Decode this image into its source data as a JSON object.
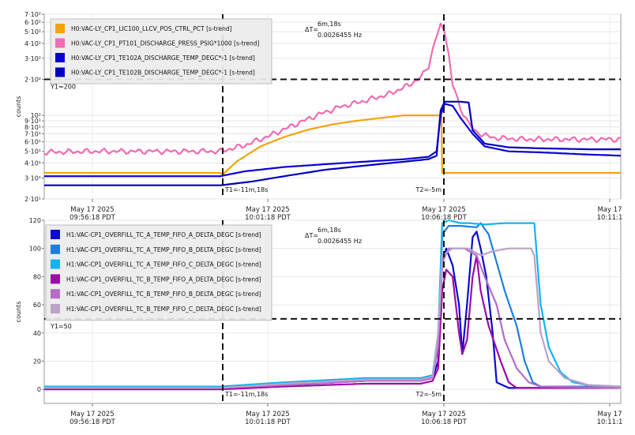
{
  "chart_data": [
    {
      "type": "line",
      "ylabel": "counts",
      "yscale": "log",
      "ylim": [
        20,
        700
      ],
      "y_ticks": [
        {
          "value": 20,
          "label": "2·10¹"
        },
        {
          "value": 30,
          "label": "3·10¹"
        },
        {
          "value": 40,
          "label": "4·10¹"
        },
        {
          "value": 50,
          "label": "5·10¹"
        },
        {
          "value": 60,
          "label": "6·10¹"
        },
        {
          "value": 70,
          "label": "7·10¹"
        },
        {
          "value": 80,
          "label": "8·10¹"
        },
        {
          "value": 90,
          "label": "9·10¹"
        },
        {
          "value": 100,
          "label": "10²"
        },
        {
          "value": 200,
          "label": "2·10²"
        },
        {
          "value": 300,
          "label": "3·10²"
        },
        {
          "value": 400,
          "label": "4·10²"
        },
        {
          "value": 500,
          "label": "5·10²"
        },
        {
          "value": 600,
          "label": "6·10²"
        },
        {
          "value": 700,
          "label": "7·10²"
        }
      ],
      "grid": true,
      "legend_position": "top-left",
      "x_ticks": [
        {
          "date": "May 17 2025",
          "time": "09:56:18 PDT"
        },
        {
          "date": "May 17 2025",
          "time": "10:01:18 PDT"
        },
        {
          "date": "May 17 2025",
          "time": "10:06:18 PDT"
        },
        {
          "date": "May 17",
          "time": "10:11:1"
        }
      ],
      "cursor_lines": {
        "t1_label": "T1=-11m,18s",
        "t2_label": "T2=-5m",
        "y1_label": "Y1=200",
        "y1_value": 200
      },
      "delta_annotation": {
        "label": "ΔT=",
        "line1": "6m,18s",
        "line2": "0.0026455 Hz"
      },
      "series": [
        {
          "name": "H0:VAC-LY_CP1_LIC100_LLCV_POS_CTRL_PCT [s-trend]",
          "color": "#f5a30a",
          "points": [
            [
              0,
              33
            ],
            [
              220,
              33
            ],
            [
              223,
              32
            ],
            [
              240,
              41
            ],
            [
              270,
              55
            ],
            [
              300,
              66
            ],
            [
              330,
              76
            ],
            [
              360,
              84
            ],
            [
              390,
              90
            ],
            [
              420,
              95
            ],
            [
              450,
              100
            ],
            [
              480,
              100
            ],
            [
              496,
              100
            ],
            [
              497,
              33
            ],
            [
              720,
              33
            ]
          ]
        },
        {
          "name": "H0:VAC-LY_CP1_PT101_DISCHARGE_PRESS_PSIG*1000 [s-trend]",
          "color": "#f06cb4",
          "points": [
            [
              0,
              49
            ],
            [
              60,
              50
            ],
            [
              120,
              50
            ],
            [
              180,
              50
            ],
            [
              220,
              50
            ],
            [
              250,
              56
            ],
            [
              280,
              67
            ],
            [
              310,
              82
            ],
            [
              340,
              100
            ],
            [
              370,
              118
            ],
            [
              400,
              132
            ],
            [
              430,
              150
            ],
            [
              450,
              172
            ],
            [
              470,
              205
            ],
            [
              480,
              260
            ],
            [
              488,
              420
            ],
            [
              495,
              560
            ],
            [
              500,
              520
            ],
            [
              505,
              320
            ],
            [
              510,
              180
            ],
            [
              520,
              115
            ],
            [
              530,
              85
            ],
            [
              540,
              72
            ],
            [
              560,
              65
            ],
            [
              600,
              63
            ],
            [
              650,
              63
            ],
            [
              720,
              63
            ]
          ]
        },
        {
          "name": "H0:VAC-LY_CP1_TE102A_DISCHARGE_TEMP_DEGC*-1 [s-trend]",
          "color": "#0a00d4",
          "points": [
            [
              0,
              31
            ],
            [
              100,
              31
            ],
            [
              220,
              31
            ],
            [
              250,
              34
            ],
            [
              300,
              37
            ],
            [
              350,
              39
            ],
            [
              400,
              41
            ],
            [
              450,
              43
            ],
            [
              480,
              45
            ],
            [
              490,
              50
            ],
            [
              495,
              100
            ],
            [
              500,
              125
            ],
            [
              510,
              120
            ],
            [
              520,
              95
            ],
            [
              535,
              70
            ],
            [
              550,
              55
            ],
            [
              580,
              50
            ],
            [
              620,
              49
            ],
            [
              680,
              47
            ],
            [
              720,
              46
            ]
          ]
        },
        {
          "name": "H0:VAC-LY_CP1_TE102B_DISCHARGE_TEMP_DEGC*-1 [s-trend]",
          "color": "#0000bf",
          "points": [
            [
              0,
              26
            ],
            [
              100,
              26
            ],
            [
              220,
              26
            ],
            [
              260,
              28
            ],
            [
              300,
              31
            ],
            [
              350,
              35
            ],
            [
              400,
              38
            ],
            [
              450,
              41
            ],
            [
              480,
              43
            ],
            [
              490,
              46
            ],
            [
              495,
              110
            ],
            [
              500,
              130
            ],
            [
              520,
              130
            ],
            [
              530,
              128
            ],
            [
              535,
              75
            ],
            [
              550,
              58
            ],
            [
              580,
              54
            ],
            [
              620,
              53
            ],
            [
              680,
              52
            ],
            [
              720,
              52
            ]
          ]
        }
      ]
    },
    {
      "type": "line",
      "ylabel": "counts",
      "ylim": [
        -10,
        120
      ],
      "y_ticks": [
        {
          "value": 0,
          "label": "0"
        },
        {
          "value": 20,
          "label": "20"
        },
        {
          "value": 40,
          "label": "40"
        },
        {
          "value": 60,
          "label": "60"
        },
        {
          "value": 80,
          "label": "80"
        },
        {
          "value": 100,
          "label": "100"
        },
        {
          "value": 120,
          "label": "120"
        }
      ],
      "grid": true,
      "legend_position": "top-left",
      "x_ticks": [
        {
          "date": "May 17 2025",
          "time": "09:56:18 PDT"
        },
        {
          "date": "May 17 2025",
          "time": "10:01:18 PDT"
        },
        {
          "date": "May 17 2025",
          "time": "10:06:18 PDT"
        },
        {
          "date": "May 17",
          "time": "10:11:1"
        }
      ],
      "cursor_lines": {
        "t1_label": "T1=-11m,18s",
        "t2_label": "T2=-5m",
        "y1_label": "Y1=50",
        "y1_value": 50
      },
      "delta_annotation": {
        "label": "ΔT=",
        "line1": "6m,18s",
        "line2": "0.0026455 Hz"
      },
      "series": [
        {
          "name": "H1:VAC-CP1_OVERFILL_TC_A_TEMP_FIFO_A_DELTA_DEGC [s-trend]",
          "color": "#0a0ad0",
          "points": [
            [
              0,
              1
            ],
            [
              220,
              1
            ],
            [
              300,
              3
            ],
            [
              400,
              6
            ],
            [
              470,
              6
            ],
            [
              485,
              8
            ],
            [
              492,
              20
            ],
            [
              497,
              90
            ],
            [
              502,
              100
            ],
            [
              510,
              88
            ],
            [
              518,
              60
            ],
            [
              522,
              25
            ],
            [
              528,
              60
            ],
            [
              535,
              108
            ],
            [
              540,
              112
            ],
            [
              545,
              100
            ],
            [
              552,
              80
            ],
            [
              560,
              40
            ],
            [
              565,
              5
            ],
            [
              580,
              1
            ],
            [
              720,
              1
            ]
          ]
        },
        {
          "name": "H1:VAC-CP1_OVERFILL_TC_A_TEMP_FIFO_B_DELTA_DEGC [s-trend]",
          "color": "#1e7ee0",
          "points": [
            [
              0,
              2
            ],
            [
              220,
              2
            ],
            [
              300,
              4
            ],
            [
              400,
              7
            ],
            [
              470,
              7
            ],
            [
              485,
              9
            ],
            [
              492,
              30
            ],
            [
              497,
              110
            ],
            [
              505,
              116
            ],
            [
              520,
              116
            ],
            [
              540,
              115
            ],
            [
              545,
              118
            ],
            [
              555,
              110
            ],
            [
              575,
              70
            ],
            [
              590,
              45
            ],
            [
              600,
              20
            ],
            [
              610,
              5
            ],
            [
              620,
              2
            ],
            [
              720,
              2
            ]
          ]
        },
        {
          "name": "H1:VAC-CP1_OVERFILL_TC_A_TEMP_FIFO_C_DELTA_DEGC [s-trend]",
          "color": "#12b4f0",
          "points": [
            [
              0,
              2
            ],
            [
              220,
              2
            ],
            [
              300,
              5
            ],
            [
              400,
              8
            ],
            [
              470,
              8
            ],
            [
              485,
              10
            ],
            [
              492,
              40
            ],
            [
              497,
              118
            ],
            [
              505,
              120
            ],
            [
              520,
              118
            ],
            [
              530,
              118
            ],
            [
              550,
              117
            ],
            [
              575,
              118
            ],
            [
              605,
              118
            ],
            [
              612,
              118
            ],
            [
              620,
              60
            ],
            [
              630,
              30
            ],
            [
              645,
              12
            ],
            [
              660,
              5
            ],
            [
              680,
              3
            ],
            [
              720,
              2
            ]
          ]
        },
        {
          "name": "H1:VAC-CP1_OVERFILL_TC_B_TEMP_FIFO_A_DELTA_DEGC [s-trend]",
          "color": "#9c0aa8",
          "points": [
            [
              0,
              0
            ],
            [
              220,
              0
            ],
            [
              300,
              2
            ],
            [
              400,
              4
            ],
            [
              470,
              4
            ],
            [
              485,
              6
            ],
            [
              492,
              15
            ],
            [
              497,
              70
            ],
            [
              502,
              85
            ],
            [
              510,
              80
            ],
            [
              518,
              40
            ],
            [
              522,
              25
            ],
            [
              528,
              35
            ],
            [
              535,
              80
            ],
            [
              540,
              95
            ],
            [
              545,
              70
            ],
            [
              555,
              45
            ],
            [
              570,
              20
            ],
            [
              580,
              5
            ],
            [
              590,
              1
            ],
            [
              720,
              1
            ]
          ]
        },
        {
          "name": "H1:VAC-CP1_OVERFILL_TC_B_TEMP_FIFO_B_DELTA_DEGC [s-trend]",
          "color": "#b46cc8",
          "points": [
            [
              0,
              1
            ],
            [
              220,
              1
            ],
            [
              300,
              3
            ],
            [
              400,
              6
            ],
            [
              470,
              6
            ],
            [
              485,
              8
            ],
            [
              492,
              30
            ],
            [
              497,
              90
            ],
            [
              505,
              100
            ],
            [
              515,
              100
            ],
            [
              525,
              100
            ],
            [
              540,
              95
            ],
            [
              550,
              80
            ],
            [
              565,
              60
            ],
            [
              575,
              35
            ],
            [
              590,
              15
            ],
            [
              605,
              5
            ],
            [
              620,
              2
            ],
            [
              720,
              1
            ]
          ]
        },
        {
          "name": "H1:VAC-CP1_OVERFILL_TC_B_TEMP_FIFO_C_DELTA_DEGC [s-trend]",
          "color": "#bca2c6",
          "points": [
            [
              0,
              1
            ],
            [
              220,
              1
            ],
            [
              300,
              4
            ],
            [
              400,
              7
            ],
            [
              470,
              7
            ],
            [
              485,
              9
            ],
            [
              492,
              40
            ],
            [
              497,
              95
            ],
            [
              510,
              100
            ],
            [
              530,
              100
            ],
            [
              545,
              95
            ],
            [
              560,
              98
            ],
            [
              580,
              100
            ],
            [
              608,
              100
            ],
            [
              612,
              95
            ],
            [
              620,
              40
            ],
            [
              630,
              20
            ],
            [
              650,
              8
            ],
            [
              680,
              3
            ],
            [
              720,
              2
            ]
          ]
        }
      ]
    }
  ]
}
